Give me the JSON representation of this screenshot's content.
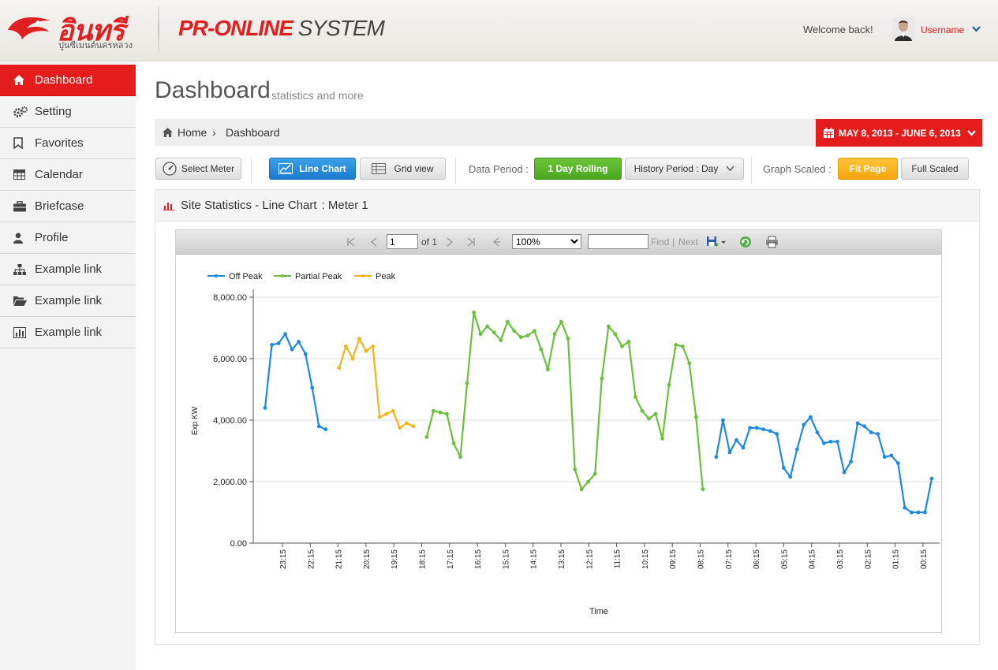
{
  "header": {
    "logo_text": "อินทรี",
    "logo_sub": "ปูนซีเมนต์นครหลวง",
    "app_title_brand": "PR-ONLINE",
    "app_title_rest": " SYSTEM",
    "welcome": "Welcome back!",
    "username": "Username",
    "caret": "⌄"
  },
  "sidebar": {
    "items": [
      {
        "label": "Dashboard",
        "icon": "home-icon",
        "active": true
      },
      {
        "label": "Setting",
        "icon": "gears-icon"
      },
      {
        "label": "Favorites",
        "icon": "bookmark-icon"
      },
      {
        "label": "Calendar",
        "icon": "calendar-table-icon"
      },
      {
        "label": "Briefcase",
        "icon": "briefcase-icon"
      },
      {
        "label": "Profile",
        "icon": "user-icon"
      },
      {
        "label": "Example link",
        "icon": "sitemap-icon"
      },
      {
        "label": "Example link",
        "icon": "folder-open-icon"
      },
      {
        "label": "Example link",
        "icon": "bar-chart-icon"
      }
    ]
  },
  "main": {
    "title": "Dashboard",
    "subtitle": "statistics and more",
    "breadcrumb": {
      "home": "Home",
      "sep": "›",
      "current": "Dashboard"
    },
    "date_range": "MAY 8, 2013 - JUNE 6, 2013"
  },
  "toolbar": {
    "select_meter": "Select Meter",
    "line_chart": "Line Chart",
    "grid_view": "Grid view",
    "data_period_label": "Data Period :",
    "day_rolling": "1 Day Rolling",
    "history_period": "History Period : Day",
    "graph_scaled_label": "Graph Scaled :",
    "fit_page": "Fit Page",
    "full_scaled": "Full Scaled"
  },
  "panel": {
    "title": "Site Statistics - Line Chart",
    "meter": ": Meter 1"
  },
  "viewer": {
    "page_value": "1",
    "of_label": "of 1",
    "zoom": "100%",
    "find_value": "",
    "find": "Find",
    "sep": "|",
    "next": "Next"
  },
  "colors": {
    "offpeak": "#1e88e5",
    "partial": "#6cbf3c",
    "peak": "#f7b317",
    "accent": "#e41c1c"
  },
  "chart_data": {
    "type": "line",
    "xlabel": "Time",
    "ylabel": "Exp KW",
    "ylim": [
      0,
      8000
    ],
    "yticks": [
      "0.00",
      "2,000.00",
      "4,000.00",
      "6,000.00",
      "8,000.00"
    ],
    "xticks": [
      "23:15",
      "22:15",
      "21:15",
      "20:15",
      "19:15",
      "18:15",
      "17:15",
      "16:15",
      "15:15",
      "14:15",
      "13:15",
      "12:15",
      "11:15",
      "10:15",
      "09:15",
      "08:15",
      "07:15",
      "06:15",
      "05:15",
      "04:15",
      "03:15",
      "02:15",
      "01:15",
      "00:15"
    ],
    "legend": "top-left",
    "grid": true,
    "series": [
      {
        "name": "Off Peak",
        "color": "#1e88e5",
        "points": [
          [
            0,
            4400
          ],
          [
            1,
            6450
          ],
          [
            2,
            6500
          ],
          [
            3,
            6800
          ],
          [
            4,
            6300
          ],
          [
            5,
            6550
          ],
          [
            6,
            6150
          ],
          [
            7,
            5050
          ],
          [
            8,
            3800
          ],
          [
            9,
            3700
          ]
        ]
      },
      {
        "name": "Peak",
        "color": "#f7b317",
        "points": [
          [
            11,
            5700
          ],
          [
            12,
            6400
          ],
          [
            13,
            6000
          ],
          [
            14,
            6650
          ],
          [
            15,
            6250
          ],
          [
            16,
            6400
          ],
          [
            17,
            4100
          ],
          [
            18,
            4200
          ],
          [
            19,
            4300
          ],
          [
            20,
            3750
          ],
          [
            21,
            3900
          ],
          [
            22,
            3800
          ]
        ]
      },
      {
        "name": "Partial Peak",
        "color": "#6cbf3c",
        "points": [
          [
            24,
            3450
          ],
          [
            25,
            4300
          ],
          [
            26,
            4250
          ],
          [
            27,
            4200
          ],
          [
            28,
            3250
          ],
          [
            29,
            2800
          ],
          [
            30,
            5200
          ],
          [
            31,
            7500
          ],
          [
            32,
            6800
          ],
          [
            33,
            7050
          ],
          [
            34,
            6850
          ],
          [
            35,
            6600
          ],
          [
            36,
            7200
          ],
          [
            37,
            6900
          ],
          [
            38,
            6700
          ],
          [
            39,
            6750
          ],
          [
            40,
            6900
          ],
          [
            41,
            6300
          ],
          [
            42,
            5650
          ],
          [
            43,
            6800
          ],
          [
            44,
            7200
          ],
          [
            45,
            6650
          ],
          [
            46,
            2400
          ],
          [
            47,
            1750
          ],
          [
            48,
            2000
          ],
          [
            49,
            2250
          ],
          [
            50,
            5350
          ],
          [
            51,
            7050
          ],
          [
            52,
            6800
          ],
          [
            53,
            6400
          ],
          [
            54,
            6550
          ],
          [
            55,
            4750
          ],
          [
            56,
            4300
          ],
          [
            57,
            4050
          ],
          [
            58,
            4200
          ],
          [
            59,
            3400
          ],
          [
            60,
            5150
          ],
          [
            61,
            6450
          ],
          [
            62,
            6400
          ],
          [
            63,
            5850
          ],
          [
            64,
            4100
          ],
          [
            65,
            1750
          ]
        ]
      },
      {
        "name": "Off Peak",
        "color": "#1e88e5",
        "points": [
          [
            67,
            2800
          ],
          [
            68,
            4000
          ],
          [
            69,
            2950
          ],
          [
            70,
            3350
          ],
          [
            71,
            3100
          ],
          [
            72,
            3750
          ],
          [
            73,
            3750
          ],
          [
            74,
            3700
          ],
          [
            75,
            3650
          ],
          [
            76,
            3550
          ],
          [
            77,
            2450
          ],
          [
            78,
            2150
          ],
          [
            79,
            3050
          ],
          [
            80,
            3850
          ],
          [
            81,
            4100
          ],
          [
            82,
            3600
          ],
          [
            83,
            3250
          ],
          [
            84,
            3300
          ],
          [
            85,
            3300
          ],
          [
            86,
            2300
          ],
          [
            87,
            2650
          ],
          [
            88,
            3900
          ],
          [
            89,
            3800
          ],
          [
            90,
            3600
          ],
          [
            91,
            3550
          ],
          [
            92,
            2800
          ],
          [
            93,
            2850
          ],
          [
            94,
            2600
          ],
          [
            95,
            1150
          ],
          [
            96,
            1000
          ],
          [
            97,
            1000
          ],
          [
            98,
            1000
          ],
          [
            99,
            2100
          ]
        ]
      }
    ]
  }
}
